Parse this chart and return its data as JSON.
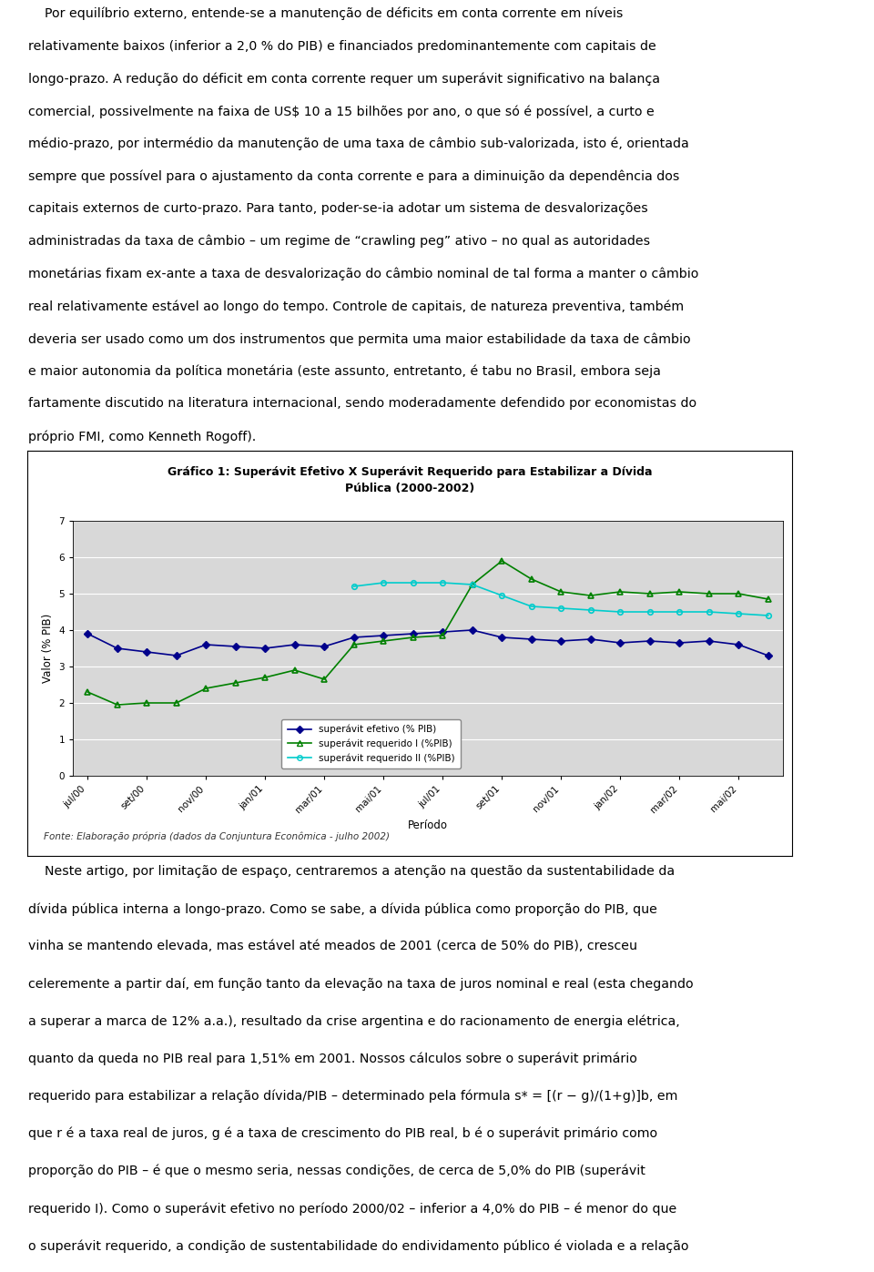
{
  "title_line1": "Gráfico 1: Superávit Efetivo X Superávit Requerido para Estabilizar a Dívida",
  "title_line2": "Pública (2000-2002)",
  "xlabel": "Período",
  "ylabel": "Valor (% PIB)",
  "source": "Fonte: Elaboração própria (dados da Conjuntura Econômica - julho 2002)",
  "xtick_labels": [
    "jul/00",
    "set/00",
    "nov/00",
    "jan/01",
    "mar/01",
    "mai/01",
    "jul/01",
    "set/01",
    "nov/01",
    "jan/02",
    "mar/02",
    "mai/02"
  ],
  "ylim": [
    0,
    7
  ],
  "yticks": [
    0,
    1,
    2,
    3,
    4,
    5,
    6,
    7
  ],
  "series": {
    "superavit_efetivo": {
      "label": "superávit efetivo (% PIB)",
      "color": "#00008B",
      "marker": "D",
      "markersize": 4,
      "linewidth": 1.2,
      "values": [
        3.9,
        3.5,
        3.4,
        3.3,
        3.6,
        3.55,
        3.5,
        3.6,
        3.55,
        3.8,
        3.85,
        3.9,
        3.95,
        4.0,
        3.8,
        3.75,
        3.7,
        3.75,
        3.65,
        3.7,
        3.65,
        3.7,
        3.6,
        3.3
      ]
    },
    "superavit_req1": {
      "label": "superávit requerido I (%PIB)",
      "color": "#008000",
      "marker": "^",
      "markersize": 5,
      "linewidth": 1.2,
      "values": [
        2.3,
        1.95,
        2.0,
        2.0,
        2.4,
        2.55,
        2.7,
        2.9,
        2.65,
        3.6,
        3.7,
        3.8,
        3.85,
        5.25,
        5.9,
        5.4,
        5.05,
        4.95,
        5.05,
        5.0,
        5.05,
        5.0,
        5.0,
        4.85
      ]
    },
    "superavit_req2": {
      "label": "superávit requerido II (%PIB)",
      "color": "#00CCCC",
      "marker": "o",
      "markersize": 4,
      "linewidth": 1.2,
      "values": [
        null,
        null,
        null,
        null,
        null,
        null,
        null,
        null,
        null,
        5.2,
        5.3,
        5.3,
        5.3,
        5.25,
        4.95,
        4.65,
        4.6,
        4.55,
        4.5,
        4.5,
        4.5,
        4.5,
        4.45,
        4.4
      ]
    }
  },
  "background_color": "#ffffff",
  "plot_bg_color": "#d8d8d8",
  "grid_color": "#ffffff",
  "title_fontsize": 9,
  "axis_label_fontsize": 8.5,
  "tick_fontsize": 7.5,
  "legend_fontsize": 7.5,
  "top_text_lines": [
    "    Por equilíbrio externo, entende-se a manutenção de déficits em conta corrente em níveis",
    "relativamente baixos (inferior a 2,0 % do PIB) e financiados predominantemente com capitais de",
    "longo-prazo. A redução do déficit em conta corrente requer um superávit significativo na balança",
    "comercial, possivelmente na faixa de US$ 10 a 15 bilhões por ano, o que só é possível, a curto e",
    "médio-prazo, por intermédio da manutenção de uma taxa de câmbio sub-valorizada, isto é, orientada",
    "sempre que possível para o ajustamento da conta corrente e para a diminuição da dependência dos",
    "capitais externos de curto-prazo. Para tanto, poder-se-ia adotar um sistema de desvalorizações",
    "administradas da taxa de câmbio – um regime de “crawling peg” ativo – no qual as autoridades",
    "monetárias fixam ex-ante a taxa de desvalorização do câmbio nominal de tal forma a manter o câmbio",
    "real relativamente estável ao longo do tempo. Controle de capitais, de natureza preventiva, também",
    "deveria ser usado como um dos instrumentos que permita uma maior estabilidade da taxa de câmbio",
    "e maior autonomia da política monetária (este assunto, entretanto, é tabu no Brasil, embora seja",
    "fartamente discutido na literatura internacional, sendo moderadamente defendido por economistas do",
    "próprio FMI, como Kenneth Rogoff)."
  ],
  "bottom_text_lines": [
    "    Neste artigo, por limitação de espaço, centraremos a atenção na questão da sustentabilidade da",
    "dívida pública interna a longo-prazo. Como se sabe, a dívida pública como proporção do PIB, que",
    "vinha se mantendo elevada, mas estável até meados de 2001 (cerca de 50% do PIB), cresceu",
    "celeremente a partir daí, em função tanto da elevação na taxa de juros nominal e real (esta chegando",
    "a superar a marca de 12% a.a.), resultado da crise argentina e do racionamento de energia elétrica,",
    "quanto da queda no PIB real para 1,51% em 2001. Nossos cálculos sobre o superávit primário",
    "requerido para estabilizar a relação dívida/PIB – determinado pela fórmula s* = [(r − g)/(1+g)]b, em",
    "que r é a taxa real de juros, g é a taxa de crescimento do PIB real, b é o superávit primário como",
    "proporção do PIB – é que o mesmo seria, nessas condições, de cerca de 5,0% do PIB (superávit",
    "requerido I). Como o superávit efetivo no período 2000/02 – inferior a 4,0% do PIB – é menor do que",
    "o superávit requerido, a condição de sustentabilidade do endividamento público é violada e a relação"
  ]
}
